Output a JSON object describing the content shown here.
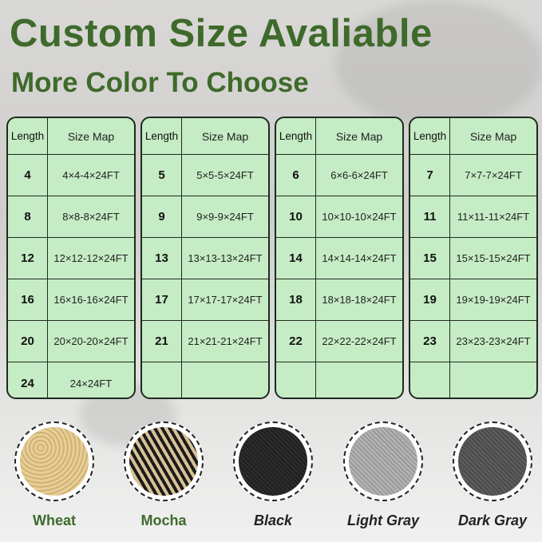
{
  "header": {
    "title": "Custom Size Avaliable",
    "subtitle": "More Color To Choose"
  },
  "tables": [
    {
      "header": {
        "length": "Length",
        "size": "Size Map"
      },
      "rows": [
        {
          "length": "4",
          "size": "4×4-4×24FT"
        },
        {
          "length": "8",
          "size": "8×8-8×24FT"
        },
        {
          "length": "12",
          "size": "12×12-12×24FT"
        },
        {
          "length": "16",
          "size": "16×16-16×24FT"
        },
        {
          "length": "20",
          "size": "20×20-20×24FT"
        },
        {
          "length": "24",
          "size": "24×24FT"
        }
      ]
    },
    {
      "header": {
        "length": "Length",
        "size": "Size Map"
      },
      "rows": [
        {
          "length": "5",
          "size": "5×5-5×24FT"
        },
        {
          "length": "9",
          "size": "9×9-9×24FT"
        },
        {
          "length": "13",
          "size": "13×13-13×24FT"
        },
        {
          "length": "17",
          "size": "17×17-17×24FT"
        },
        {
          "length": "21",
          "size": "21×21-21×24FT"
        },
        {
          "length": "",
          "size": ""
        }
      ]
    },
    {
      "header": {
        "length": "Length",
        "size": "Size Map"
      },
      "rows": [
        {
          "length": "6",
          "size": "6×6-6×24FT"
        },
        {
          "length": "10",
          "size": "10×10-10×24FT"
        },
        {
          "length": "14",
          "size": "14×14-14×24FT"
        },
        {
          "length": "18",
          "size": "18×18-18×24FT"
        },
        {
          "length": "22",
          "size": "22×22-22×24FT"
        },
        {
          "length": "",
          "size": ""
        }
      ]
    },
    {
      "header": {
        "length": "Length",
        "size": "Size Map"
      },
      "rows": [
        {
          "length": "7",
          "size": "7×7-7×24FT"
        },
        {
          "length": "11",
          "size": "11×11-11×24FT"
        },
        {
          "length": "15",
          "size": "15×15-15×24FT"
        },
        {
          "length": "19",
          "size": "19×19-19×24FT"
        },
        {
          "length": "23",
          "size": "23×23-23×24FT"
        },
        {
          "length": "",
          "size": ""
        }
      ]
    }
  ],
  "colors": [
    {
      "name": "Wheat",
      "hex": "#dcc086"
    },
    {
      "name": "Mocha",
      "hex": "#8a7655"
    },
    {
      "name": "Black",
      "hex": "#2a2a2a"
    },
    {
      "name": "Light Gray",
      "hex": "#a9a9a9"
    },
    {
      "name": "Dark Gray",
      "hex": "#555555"
    }
  ]
}
